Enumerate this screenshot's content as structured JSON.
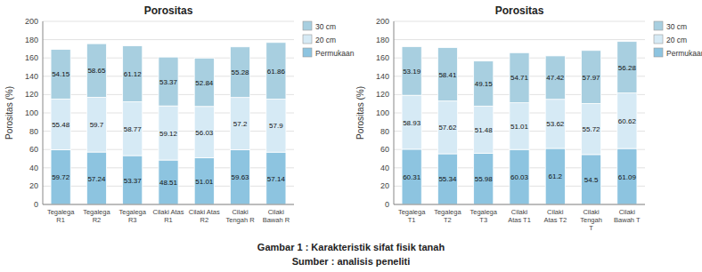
{
  "chart_data": [
    {
      "type": "bar",
      "stacked": true,
      "title": "Porositas",
      "categories": [
        "Tegalega\nR1",
        "Tegalega\nR2",
        "Tegalega\nR3",
        "Cilaki Atas\nR1",
        "Cilaki Atas\nR2",
        "Cilaki\nTengah R",
        "Cilaki\nBawah R"
      ],
      "series": [
        {
          "name": "Permukaan",
          "color": "#8dc4e0",
          "values": [
            59.72,
            57.24,
            53.37,
            48.51,
            51.01,
            59.63,
            57.14
          ]
        },
        {
          "name": "20 cm",
          "color": "#d6eaf5",
          "values": [
            55.48,
            59.7,
            58.77,
            59.12,
            56.03,
            57.2,
            57.9
          ]
        },
        {
          "name": "30 cm",
          "color": "#a8cfe0",
          "values": [
            54.15,
            58.65,
            61.12,
            53.37,
            52.84,
            55.28,
            61.86
          ]
        }
      ],
      "ylabel": "Porositas (%)",
      "ylim": [
        0,
        200
      ],
      "yticks": [
        0,
        20,
        40,
        60,
        80,
        100,
        120,
        140,
        160,
        180,
        200
      ],
      "grid": true,
      "legend": "upper right",
      "data_labels": true
    },
    {
      "type": "bar",
      "stacked": true,
      "title": "Porositas",
      "categories": [
        "Tegalega\nT1",
        "Tegalega\nT2",
        "Tegalega\nT3",
        "Cilaki\nAtas T1",
        "Cilaki\nAtas T2",
        "Cilaki\nTengah\nT",
        "Cilaki\nBawah T"
      ],
      "series": [
        {
          "name": "Permukaan",
          "color": "#8dc4e0",
          "values": [
            60.31,
            55.34,
            55.98,
            60.03,
            61.2,
            54.5,
            61.09
          ]
        },
        {
          "name": "20 cm",
          "color": "#d6eaf5",
          "values": [
            58.93,
            57.62,
            51.48,
            51.01,
            53.62,
            55.72,
            60.62
          ]
        },
        {
          "name": "30 cm",
          "color": "#a8cfe0",
          "values": [
            53.19,
            58.41,
            49.15,
            54.71,
            47.42,
            57.97,
            56.28
          ]
        }
      ],
      "ylabel": "Porositas (%)",
      "ylim": [
        0,
        200
      ],
      "yticks": [
        0,
        20,
        40,
        60,
        80,
        100,
        120,
        140,
        160,
        180,
        200
      ],
      "grid": true,
      "legend": "upper right",
      "data_labels": true
    }
  ],
  "annotations": [
    "Gambar 1 : Karakteristik sifat fisik tanah",
    "Sumber : analisis peneliti"
  ]
}
